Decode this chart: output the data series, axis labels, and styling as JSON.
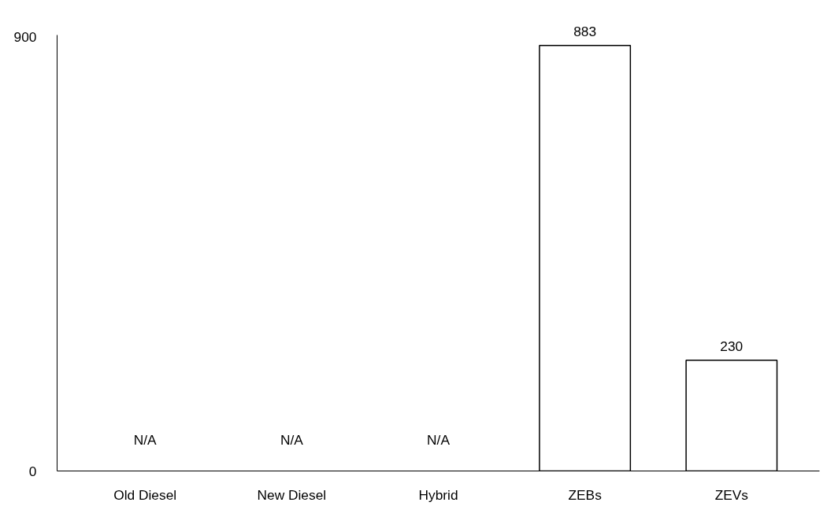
{
  "chart_data": {
    "type": "bar",
    "categories": [
      "Old Diesel",
      "New Diesel",
      "Hybrid",
      "ZEBs",
      "ZEVs"
    ],
    "values": [
      null,
      null,
      null,
      883,
      230
    ],
    "value_labels": [
      "N/A",
      "N/A",
      "N/A",
      "883",
      "230"
    ],
    "color": "#ffffff",
    "ylim": [
      0,
      905
    ],
    "yticks": [
      0,
      900
    ],
    "grid": false
  }
}
